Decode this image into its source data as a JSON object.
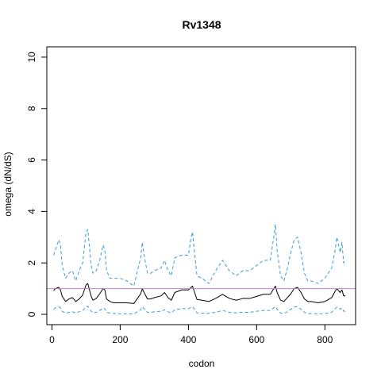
{
  "chart_data": {
    "type": "line",
    "title": "Rv1348",
    "xlabel": "codon",
    "ylabel": "omega (dN/dS)",
    "xlim": [
      -15,
      890
    ],
    "ylim": [
      -0.4,
      10.4
    ],
    "xticks": [
      0,
      200,
      400,
      600,
      800
    ],
    "yticks": [
      0,
      2,
      4,
      6,
      8,
      10
    ],
    "xtick_labels": [
      "0",
      "200",
      "400",
      "600",
      "800"
    ],
    "ytick_labels": [
      "0",
      "2",
      "4",
      "6",
      "8",
      "10"
    ],
    "grid": false,
    "reference_line": {
      "y": 1.0,
      "color": "#c080c8"
    },
    "series": [
      {
        "style": "dashed",
        "color": "#3a9ad9",
        "x": [
          5,
          10,
          20,
          25,
          30,
          40,
          50,
          60,
          70,
          80,
          90,
          100,
          105,
          110,
          115,
          120,
          130,
          140,
          150,
          155,
          160,
          170,
          180,
          200,
          220,
          240,
          260,
          265,
          270,
          280,
          290,
          300,
          320,
          330,
          340,
          350,
          360,
          380,
          400,
          408,
          412,
          418,
          425,
          440,
          460,
          480,
          500,
          520,
          540,
          560,
          580,
          600,
          620,
          640,
          650,
          655,
          660,
          670,
          680,
          690,
          700,
          710,
          720,
          730,
          740,
          750,
          760,
          780,
          800,
          820,
          830,
          835,
          840,
          845,
          850,
          855,
          860
        ],
        "values": [
          2.3,
          2.5,
          2.9,
          2.7,
          1.9,
          1.4,
          1.6,
          1.7,
          1.3,
          1.7,
          2.0,
          3.2,
          3.3,
          2.6,
          1.9,
          1.6,
          1.7,
          2.1,
          2.7,
          2.5,
          1.7,
          1.4,
          1.4,
          1.4,
          1.3,
          1.1,
          2.2,
          2.8,
          2.3,
          1.6,
          1.6,
          1.7,
          1.8,
          2.1,
          1.7,
          1.5,
          2.2,
          2.3,
          2.3,
          3.0,
          3.2,
          2.4,
          1.5,
          1.4,
          1.2,
          1.7,
          2.1,
          1.7,
          1.5,
          1.7,
          1.7,
          1.9,
          2.1,
          2.1,
          3.0,
          3.5,
          2.5,
          1.5,
          1.3,
          1.8,
          2.4,
          2.9,
          3.0,
          2.4,
          1.6,
          1.3,
          1.3,
          1.2,
          1.4,
          1.8,
          2.5,
          3.0,
          2.7,
          2.4,
          2.8,
          2.0,
          2.1
        ]
      },
      {
        "style": "solid",
        "color": "#000000",
        "x": [
          5,
          10,
          20,
          25,
          30,
          40,
          50,
          60,
          70,
          80,
          90,
          100,
          105,
          110,
          115,
          120,
          130,
          140,
          150,
          155,
          160,
          170,
          180,
          200,
          220,
          240,
          260,
          265,
          270,
          280,
          290,
          300,
          320,
          330,
          340,
          350,
          360,
          380,
          400,
          408,
          412,
          418,
          425,
          440,
          460,
          480,
          500,
          520,
          540,
          560,
          580,
          600,
          620,
          640,
          650,
          655,
          660,
          670,
          680,
          690,
          700,
          710,
          720,
          730,
          740,
          750,
          760,
          780,
          800,
          820,
          830,
          835,
          840,
          845,
          850,
          855,
          860
        ],
        "values": [
          0.92,
          1.0,
          1.05,
          0.95,
          0.7,
          0.5,
          0.6,
          0.65,
          0.5,
          0.6,
          0.75,
          1.15,
          1.2,
          0.95,
          0.7,
          0.55,
          0.62,
          0.8,
          1.0,
          0.95,
          0.6,
          0.5,
          0.45,
          0.45,
          0.45,
          0.42,
          0.8,
          1.0,
          0.85,
          0.6,
          0.6,
          0.65,
          0.72,
          0.85,
          0.65,
          0.55,
          0.85,
          0.95,
          0.95,
          1.05,
          1.1,
          0.85,
          0.58,
          0.55,
          0.5,
          0.62,
          0.78,
          0.62,
          0.55,
          0.62,
          0.62,
          0.7,
          0.78,
          0.78,
          1.0,
          1.1,
          0.85,
          0.55,
          0.5,
          0.65,
          0.8,
          1.0,
          1.05,
          0.85,
          0.6,
          0.5,
          0.5,
          0.45,
          0.5,
          0.65,
          0.9,
          1.0,
          0.92,
          0.85,
          0.95,
          0.72,
          0.72
        ]
      },
      {
        "style": "dashed",
        "color": "#3a9ad9",
        "x": [
          5,
          10,
          20,
          25,
          30,
          40,
          50,
          60,
          70,
          80,
          90,
          100,
          105,
          110,
          115,
          120,
          130,
          140,
          150,
          155,
          160,
          170,
          180,
          200,
          220,
          240,
          260,
          265,
          270,
          280,
          290,
          300,
          320,
          330,
          340,
          350,
          360,
          380,
          400,
          408,
          412,
          418,
          425,
          440,
          460,
          480,
          500,
          520,
          540,
          560,
          580,
          600,
          620,
          640,
          650,
          655,
          660,
          670,
          680,
          690,
          700,
          710,
          720,
          730,
          740,
          750,
          760,
          780,
          800,
          820,
          830,
          835,
          840,
          845,
          850,
          855,
          860
        ],
        "values": [
          0.2,
          0.25,
          0.3,
          0.25,
          0.12,
          0.05,
          0.08,
          0.1,
          0.05,
          0.1,
          0.15,
          0.28,
          0.32,
          0.22,
          0.12,
          0.06,
          0.08,
          0.15,
          0.25,
          0.22,
          0.08,
          0.05,
          0.03,
          0.02,
          0.02,
          0.02,
          0.18,
          0.3,
          0.22,
          0.08,
          0.08,
          0.1,
          0.12,
          0.18,
          0.1,
          0.06,
          0.18,
          0.22,
          0.22,
          0.28,
          0.3,
          0.2,
          0.06,
          0.05,
          0.04,
          0.08,
          0.15,
          0.08,
          0.06,
          0.08,
          0.08,
          0.12,
          0.15,
          0.15,
          0.25,
          0.3,
          0.2,
          0.05,
          0.04,
          0.1,
          0.2,
          0.28,
          0.3,
          0.2,
          0.08,
          0.03,
          0.03,
          0.02,
          0.03,
          0.08,
          0.22,
          0.28,
          0.25,
          0.2,
          0.25,
          0.12,
          0.12
        ]
      }
    ]
  }
}
